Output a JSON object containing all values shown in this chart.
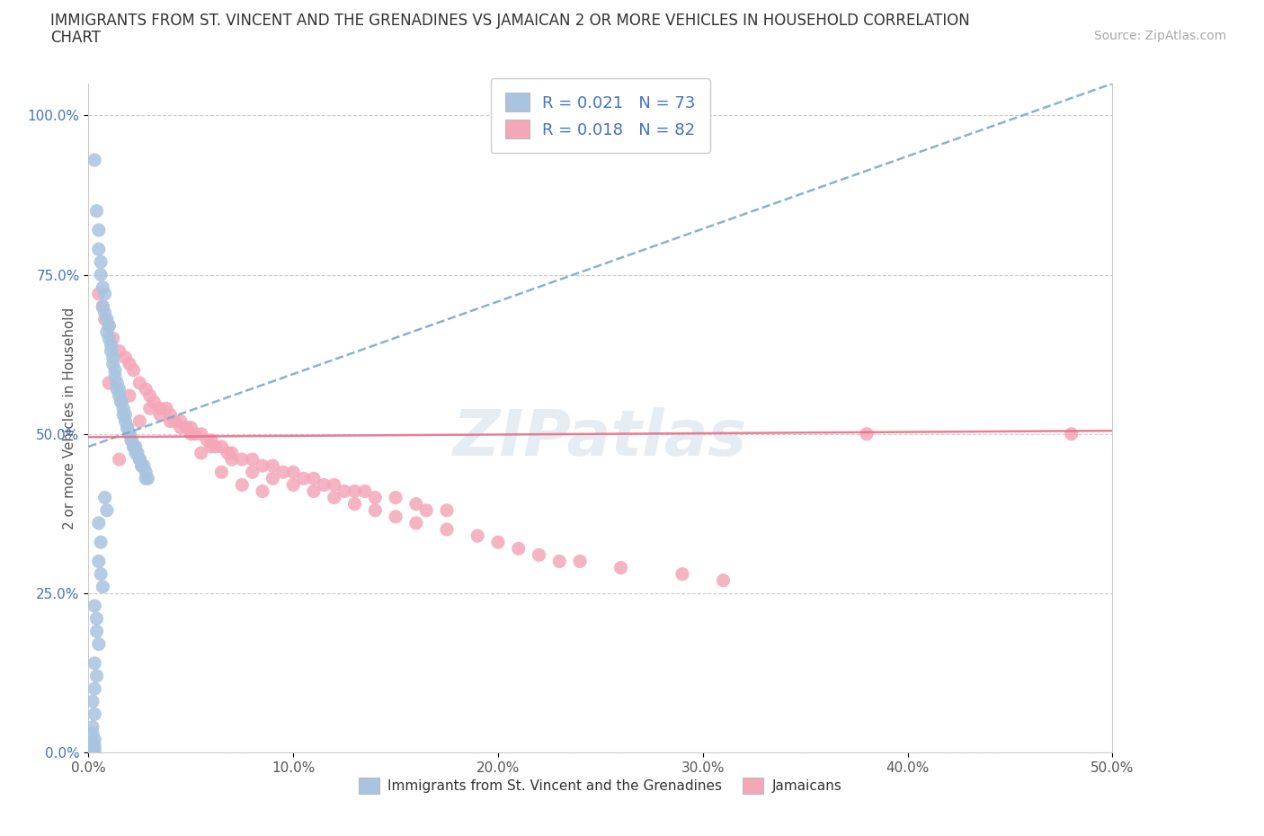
{
  "title_line1": "IMMIGRANTS FROM ST. VINCENT AND THE GRENADINES VS JAMAICAN 2 OR MORE VEHICLES IN HOUSEHOLD CORRELATION",
  "title_line2": "CHART",
  "source_text": "Source: ZipAtlas.com",
  "ylabel": "2 or more Vehicles in Household",
  "xlim": [
    0.0,
    0.5
  ],
  "ylim": [
    0.0,
    1.05
  ],
  "xtick_labels": [
    "0.0%",
    "10.0%",
    "20.0%",
    "30.0%",
    "40.0%",
    "50.0%"
  ],
  "xtick_vals": [
    0.0,
    0.1,
    0.2,
    0.3,
    0.4,
    0.5
  ],
  "ytick_labels": [
    "0.0%",
    "25.0%",
    "50.0%",
    "75.0%",
    "100.0%"
  ],
  "ytick_vals": [
    0.0,
    0.25,
    0.5,
    0.75,
    1.0
  ],
  "blue_color": "#a8c4e0",
  "pink_color": "#f4a7b9",
  "trendline_blue_color": "#7aaace",
  "trendline_pink_color": "#e8708a",
  "blue_scatter": [
    [
      0.003,
      0.93
    ],
    [
      0.004,
      0.85
    ],
    [
      0.005,
      0.82
    ],
    [
      0.005,
      0.79
    ],
    [
      0.006,
      0.77
    ],
    [
      0.006,
      0.75
    ],
    [
      0.007,
      0.73
    ],
    [
      0.008,
      0.72
    ],
    [
      0.007,
      0.7
    ],
    [
      0.008,
      0.69
    ],
    [
      0.009,
      0.68
    ],
    [
      0.009,
      0.66
    ],
    [
      0.01,
      0.67
    ],
    [
      0.01,
      0.65
    ],
    [
      0.011,
      0.64
    ],
    [
      0.011,
      0.63
    ],
    [
      0.012,
      0.62
    ],
    [
      0.012,
      0.61
    ],
    [
      0.013,
      0.6
    ],
    [
      0.013,
      0.59
    ],
    [
      0.014,
      0.58
    ],
    [
      0.014,
      0.57
    ],
    [
      0.015,
      0.57
    ],
    [
      0.015,
      0.56
    ],
    [
      0.016,
      0.55
    ],
    [
      0.016,
      0.55
    ],
    [
      0.017,
      0.54
    ],
    [
      0.017,
      0.53
    ],
    [
      0.018,
      0.53
    ],
    [
      0.018,
      0.52
    ],
    [
      0.019,
      0.51
    ],
    [
      0.019,
      0.51
    ],
    [
      0.02,
      0.5
    ],
    [
      0.02,
      0.5
    ],
    [
      0.021,
      0.49
    ],
    [
      0.021,
      0.49
    ],
    [
      0.022,
      0.48
    ],
    [
      0.022,
      0.48
    ],
    [
      0.023,
      0.48
    ],
    [
      0.023,
      0.47
    ],
    [
      0.024,
      0.47
    ],
    [
      0.025,
      0.46
    ],
    [
      0.025,
      0.46
    ],
    [
      0.026,
      0.45
    ],
    [
      0.026,
      0.45
    ],
    [
      0.027,
      0.45
    ],
    [
      0.028,
      0.44
    ],
    [
      0.028,
      0.43
    ],
    [
      0.029,
      0.43
    ],
    [
      0.008,
      0.4
    ],
    [
      0.009,
      0.38
    ],
    [
      0.005,
      0.36
    ],
    [
      0.006,
      0.33
    ],
    [
      0.005,
      0.3
    ],
    [
      0.006,
      0.28
    ],
    [
      0.007,
      0.26
    ],
    [
      0.003,
      0.23
    ],
    [
      0.004,
      0.21
    ],
    [
      0.004,
      0.19
    ],
    [
      0.005,
      0.17
    ],
    [
      0.003,
      0.14
    ],
    [
      0.004,
      0.12
    ],
    [
      0.003,
      0.1
    ],
    [
      0.002,
      0.08
    ],
    [
      0.003,
      0.06
    ],
    [
      0.002,
      0.04
    ],
    [
      0.002,
      0.03
    ],
    [
      0.003,
      0.02
    ],
    [
      0.002,
      0.015
    ],
    [
      0.003,
      0.01
    ],
    [
      0.002,
      0.005
    ],
    [
      0.003,
      0.003
    ],
    [
      0.002,
      0.002
    ]
  ],
  "pink_scatter": [
    [
      0.005,
      0.72
    ],
    [
      0.007,
      0.7
    ],
    [
      0.008,
      0.68
    ],
    [
      0.01,
      0.67
    ],
    [
      0.012,
      0.65
    ],
    [
      0.015,
      0.63
    ],
    [
      0.018,
      0.62
    ],
    [
      0.02,
      0.61
    ],
    [
      0.022,
      0.6
    ],
    [
      0.025,
      0.58
    ],
    [
      0.028,
      0.57
    ],
    [
      0.03,
      0.56
    ],
    [
      0.032,
      0.55
    ],
    [
      0.035,
      0.54
    ],
    [
      0.038,
      0.54
    ],
    [
      0.04,
      0.53
    ],
    [
      0.042,
      0.52
    ],
    [
      0.045,
      0.52
    ],
    [
      0.048,
      0.51
    ],
    [
      0.05,
      0.51
    ],
    [
      0.052,
      0.5
    ],
    [
      0.055,
      0.5
    ],
    [
      0.058,
      0.49
    ],
    [
      0.06,
      0.49
    ],
    [
      0.062,
      0.48
    ],
    [
      0.065,
      0.48
    ],
    [
      0.068,
      0.47
    ],
    [
      0.07,
      0.47
    ],
    [
      0.075,
      0.46
    ],
    [
      0.08,
      0.46
    ],
    [
      0.085,
      0.45
    ],
    [
      0.09,
      0.45
    ],
    [
      0.095,
      0.44
    ],
    [
      0.1,
      0.44
    ],
    [
      0.105,
      0.43
    ],
    [
      0.11,
      0.43
    ],
    [
      0.115,
      0.42
    ],
    [
      0.12,
      0.42
    ],
    [
      0.125,
      0.41
    ],
    [
      0.13,
      0.41
    ],
    [
      0.135,
      0.41
    ],
    [
      0.14,
      0.4
    ],
    [
      0.15,
      0.4
    ],
    [
      0.16,
      0.39
    ],
    [
      0.165,
      0.38
    ],
    [
      0.175,
      0.38
    ],
    [
      0.015,
      0.46
    ],
    [
      0.025,
      0.52
    ],
    [
      0.035,
      0.53
    ],
    [
      0.045,
      0.51
    ],
    [
      0.055,
      0.47
    ],
    [
      0.065,
      0.44
    ],
    [
      0.075,
      0.42
    ],
    [
      0.085,
      0.41
    ],
    [
      0.01,
      0.58
    ],
    [
      0.02,
      0.56
    ],
    [
      0.03,
      0.54
    ],
    [
      0.04,
      0.52
    ],
    [
      0.05,
      0.5
    ],
    [
      0.06,
      0.48
    ],
    [
      0.07,
      0.46
    ],
    [
      0.08,
      0.44
    ],
    [
      0.09,
      0.43
    ],
    [
      0.1,
      0.42
    ],
    [
      0.11,
      0.41
    ],
    [
      0.12,
      0.4
    ],
    [
      0.13,
      0.39
    ],
    [
      0.14,
      0.38
    ],
    [
      0.15,
      0.37
    ],
    [
      0.16,
      0.36
    ],
    [
      0.175,
      0.35
    ],
    [
      0.19,
      0.34
    ],
    [
      0.2,
      0.33
    ],
    [
      0.21,
      0.32
    ],
    [
      0.22,
      0.31
    ],
    [
      0.23,
      0.3
    ],
    [
      0.24,
      0.3
    ],
    [
      0.26,
      0.29
    ],
    [
      0.29,
      0.28
    ],
    [
      0.31,
      0.27
    ],
    [
      0.38,
      0.5
    ],
    [
      0.48,
      0.5
    ]
  ],
  "watermark": "ZIPatlas",
  "legend_blue_label": "R = 0.021   N = 73",
  "legend_pink_label": "R = 0.018   N = 82",
  "bottom_legend_blue": "Immigrants from St. Vincent and the Grenadines",
  "bottom_legend_pink": "Jamaicans",
  "blue_trend_x": [
    0.0,
    0.5
  ],
  "blue_trend_y": [
    0.48,
    1.05
  ],
  "pink_trend_x": [
    0.0,
    0.5
  ],
  "pink_trend_y": [
    0.495,
    0.505
  ]
}
